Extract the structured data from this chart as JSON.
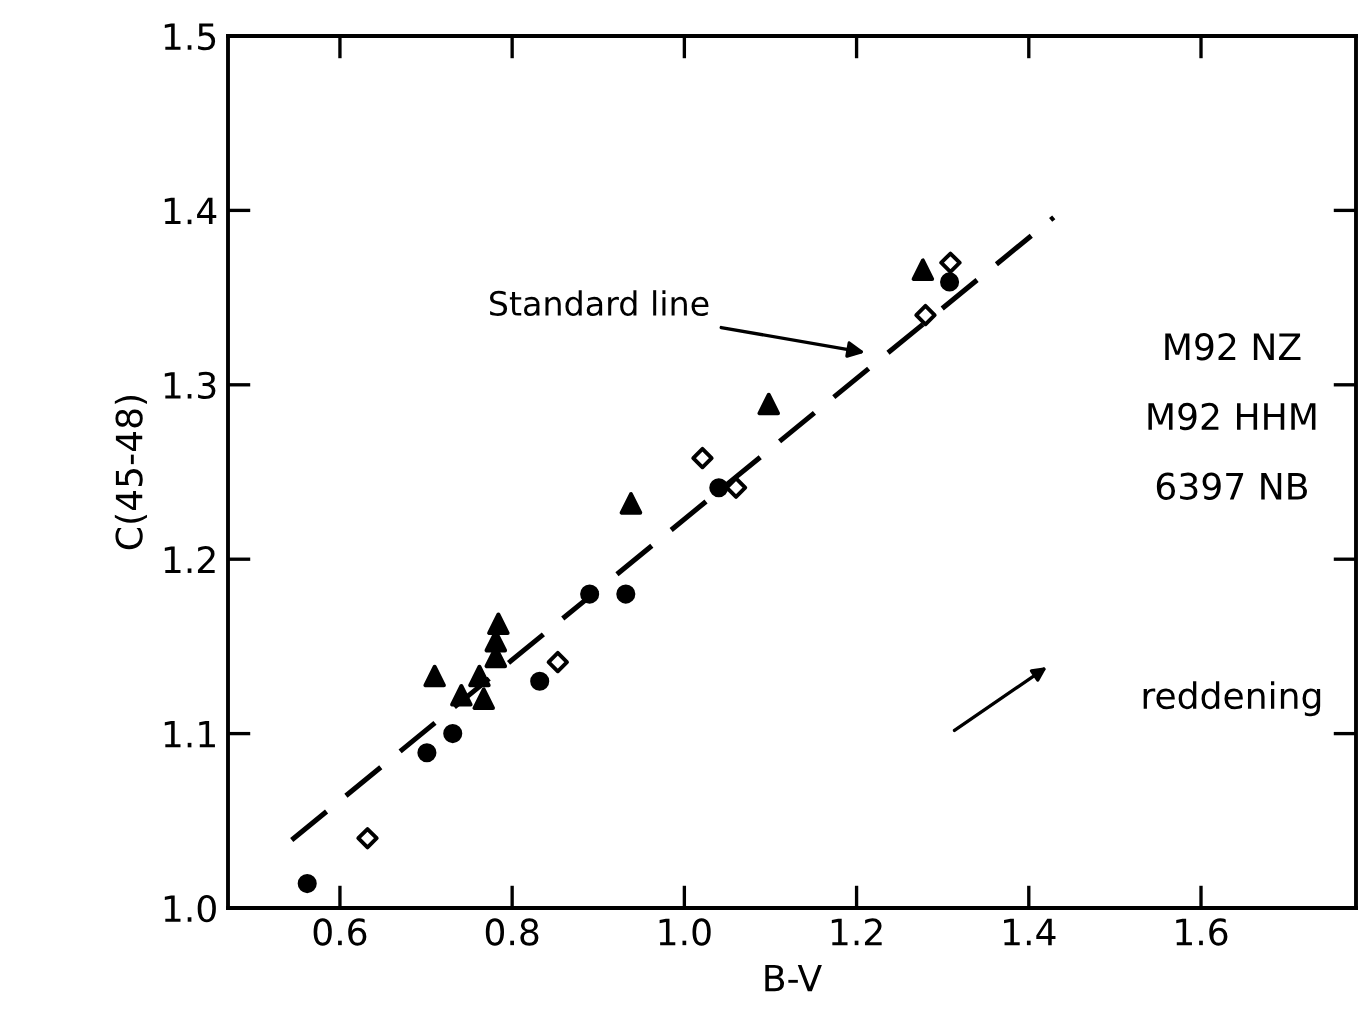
{
  "chart_data": {
    "type": "scatter",
    "xlabel": "B-V",
    "ylabel": "C(45-48)",
    "xlim": [
      0.47,
      1.78
    ],
    "ylim": [
      1.0,
      1.5
    ],
    "xticks": [
      0.6,
      0.8,
      {
        "value": 1.0,
        "label": "1.0"
      },
      1.2,
      1.4,
      1.6
    ],
    "yticks": [
      {
        "value": 1.0,
        "label": "1.0"
      },
      1.1,
      1.2,
      1.3,
      1.4,
      1.5
    ],
    "grid": false,
    "series": [
      {
        "marker": "circle",
        "color": "#000000",
        "x": [
          0.562,
          0.701,
          0.731,
          0.832,
          0.89,
          0.932,
          1.04,
          1.308
        ],
        "values": [
          1.014,
          1.089,
          1.1,
          1.13,
          1.18,
          1.18,
          1.241,
          1.359
        ]
      },
      {
        "marker": "triangle",
        "color": "#000000",
        "x": [
          0.71,
          0.741,
          0.762,
          0.767,
          0.784,
          0.781,
          0.781,
          0.938,
          1.098,
          1.277
        ],
        "values": [
          1.133,
          1.122,
          1.133,
          1.12,
          1.163,
          1.153,
          1.144,
          1.232,
          1.289,
          1.366
        ]
      },
      {
        "marker": "diamond",
        "color": "#000000",
        "x": [
          0.632,
          0.853,
          1.021,
          1.06,
          1.28,
          1.309
        ],
        "values": [
          1.04,
          1.141,
          1.258,
          1.241,
          1.34,
          1.37
        ]
      },
      {
        "type": "line",
        "line_style": "dashed",
        "color": "#000000",
        "x": [
          0.544,
          1.429
        ],
        "values": [
          1.039,
          1.396
        ]
      }
    ],
    "annotations": [
      {
        "text": "Standard line",
        "x": 1.216,
        "y": 1.318
      },
      "M92 NZ",
      "M92 HHM",
      "6397 NB",
      "reddening"
    ]
  }
}
